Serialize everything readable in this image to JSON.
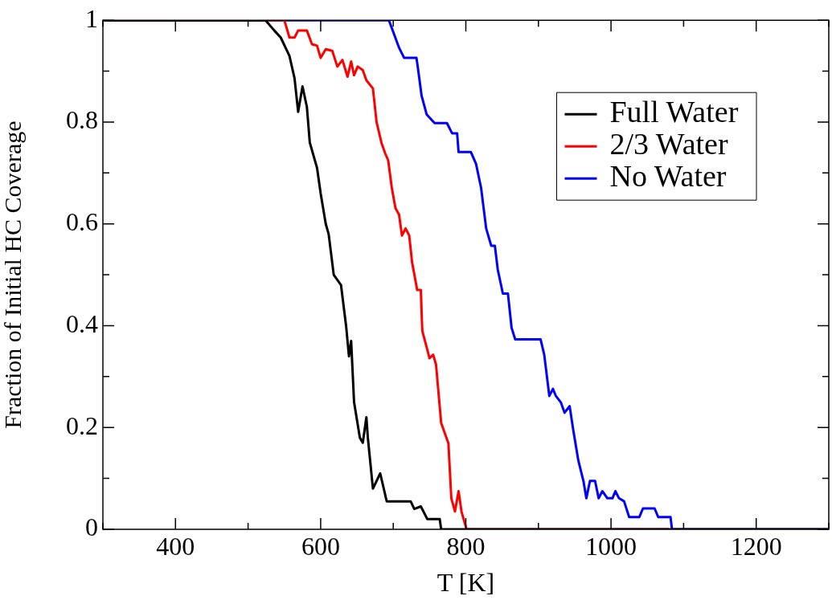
{
  "chart_data": {
    "type": "line",
    "xlabel": "T [K]",
    "ylabel": "Fraction of Initial HC Coverage",
    "xlim": [
      300,
      1300
    ],
    "ylim": [
      0,
      1
    ],
    "xticks": [
      {
        "value": 300,
        "label": null
      },
      400,
      {
        "value": 500,
        "label": null
      },
      600,
      {
        "value": 700,
        "label": null
      },
      800,
      {
        "value": 900,
        "label": null
      },
      1000,
      {
        "value": 1100,
        "label": null
      },
      1200,
      {
        "value": 1300,
        "label": null
      }
    ],
    "yticks": [
      0,
      {
        "value": 0.1,
        "label": null
      },
      0.2,
      {
        "value": 0.3,
        "label": null
      },
      0.4,
      {
        "value": 0.5,
        "label": null
      },
      0.6,
      {
        "value": 0.7,
        "label": null
      },
      0.8,
      {
        "value": 0.9,
        "label": null
      },
      1
    ],
    "grid": false,
    "legend": "top right",
    "marker": "none",
    "line_style": "solid",
    "series": [
      {
        "name": "Full Water",
        "color": "#000000",
        "x": [
          300,
          524,
          536,
          545,
          557,
          564,
          569,
          575,
          581,
          585,
          595,
          600,
          607,
          611,
          618,
          628,
          635,
          639,
          642,
          646,
          654,
          658,
          663,
          665,
          672,
          682,
          691,
          724,
          729,
          738,
          747,
          764,
          766,
          1300
        ],
        "values": [
          1,
          1,
          0.98,
          0.966,
          0.93,
          0.886,
          0.82,
          0.87,
          0.83,
          0.76,
          0.71,
          0.66,
          0.6,
          0.58,
          0.5,
          0.48,
          0.4,
          0.34,
          0.37,
          0.25,
          0.18,
          0.17,
          0.22,
          0.18,
          0.08,
          0.11,
          0.055,
          0.055,
          0.04,
          0.045,
          0.02,
          0.02,
          0,
          0
        ]
      },
      {
        "name": "2/3 Water",
        "color": "#ff0000",
        "x": [
          300,
          550,
          557,
          564,
          569,
          581,
          588,
          595,
          600,
          607,
          616,
          623,
          630,
          637,
          642,
          646,
          651,
          658,
          663,
          672,
          677,
          684,
          689,
          693,
          698,
          703,
          708,
          712,
          717,
          722,
          726,
          733,
          738,
          740,
          745,
          750,
          755,
          759,
          766,
          771,
          776,
          780,
          785,
          790,
          794,
          801,
          1080
        ],
        "values": [
          1,
          1,
          0.966,
          0.966,
          0.98,
          0.98,
          0.953,
          0.95,
          0.926,
          0.943,
          0.94,
          0.909,
          0.922,
          0.889,
          0.919,
          0.892,
          0.909,
          0.902,
          0.882,
          0.866,
          0.8,
          0.758,
          0.738,
          0.725,
          0.671,
          0.631,
          0.618,
          0.577,
          0.591,
          0.577,
          0.524,
          0.47,
          0.47,
          0.39,
          0.363,
          0.336,
          0.343,
          0.323,
          0.209,
          0.189,
          0.169,
          0.061,
          0.035,
          0.075,
          0.035,
          0,
          0
        ]
      },
      {
        "name": "No Water",
        "color": "#0000ff",
        "x": [
          300,
          694,
          701,
          708,
          715,
          732,
          734,
          739,
          746,
          757,
          774,
          781,
          788,
          790,
          807,
          814,
          821,
          828,
          835,
          840,
          844,
          851,
          858,
          863,
          868,
          903,
          908,
          915,
          920,
          924,
          931,
          936,
          943,
          948,
          955,
          962,
          966,
          971,
          978,
          983,
          988,
          995,
          1002,
          1006,
          1011,
          1018,
          1025,
          1039,
          1044,
          1060,
          1065,
          1082,
          1084,
          1300
        ],
        "values": [
          1,
          1,
          0.973,
          0.946,
          0.926,
          0.926,
          0.906,
          0.852,
          0.815,
          0.798,
          0.798,
          0.778,
          0.778,
          0.741,
          0.741,
          0.718,
          0.671,
          0.591,
          0.557,
          0.557,
          0.51,
          0.463,
          0.463,
          0.396,
          0.373,
          0.373,
          0.343,
          0.262,
          0.276,
          0.262,
          0.249,
          0.229,
          0.242,
          0.195,
          0.135,
          0.095,
          0.061,
          0.095,
          0.095,
          0.061,
          0.075,
          0.061,
          0.061,
          0.075,
          0.061,
          0.055,
          0.024,
          0.024,
          0.041,
          0.041,
          0.024,
          0.024,
          0,
          0
        ]
      }
    ]
  }
}
